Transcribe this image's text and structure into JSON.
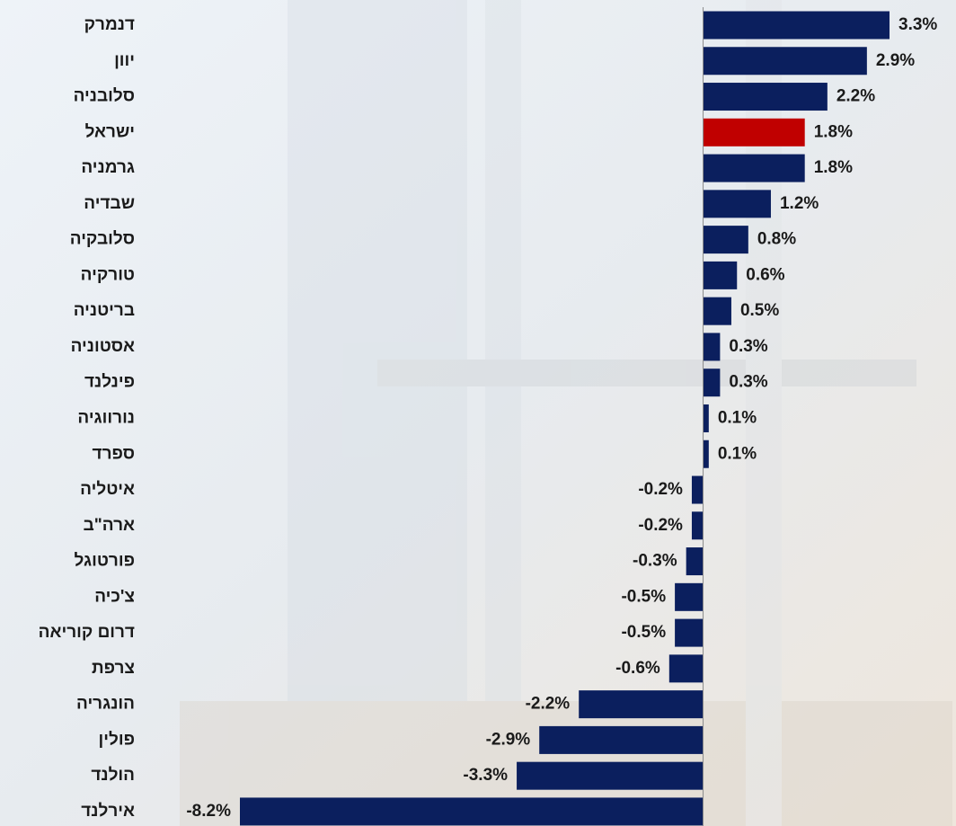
{
  "chart_data": {
    "type": "bar",
    "orientation": "horizontal",
    "categories": [
      "דנמרק",
      "יוון",
      "סלובניה",
      "ישראל",
      "גרמניה",
      "שבדיה",
      "סלובקיה",
      "טורקיה",
      "בריטניה",
      "אסטוניה",
      "פינלנד",
      "נורווגיה",
      "ספרד",
      "איטליה",
      "ארה\"ב",
      "פורטוגל",
      "צ'כיה",
      "דרום קוריאה",
      "צרפת",
      "הונגריה",
      "פולין",
      "הולנד",
      "אירלנד"
    ],
    "values": [
      3.3,
      2.9,
      2.2,
      1.8,
      1.8,
      1.2,
      0.8,
      0.6,
      0.5,
      0.3,
      0.3,
      0.1,
      0.1,
      -0.2,
      -0.2,
      -0.3,
      -0.5,
      -0.5,
      -0.6,
      -2.2,
      -2.9,
      -3.3,
      -8.2
    ],
    "value_labels": [
      "3.3%",
      "2.9%",
      "2.2%",
      "1.8%",
      "1.8%",
      "1.2%",
      "0.8%",
      "0.6%",
      "0.5%",
      "0.3%",
      "0.3%",
      "0.1%",
      "0.1%",
      "-0.2%",
      "-0.2%",
      "-0.3%",
      "-0.5%",
      "-0.5%",
      "-0.6%",
      "-2.2%",
      "-2.9%",
      "-3.3%",
      "-8.2%"
    ],
    "colors": [
      "#0b1f5e",
      "#0b1f5e",
      "#0b1f5e",
      "#c00000",
      "#0b1f5e",
      "#0b1f5e",
      "#0b1f5e",
      "#0b1f5e",
      "#0b1f5e",
      "#0b1f5e",
      "#0b1f5e",
      "#0b1f5e",
      "#0b1f5e",
      "#0b1f5e",
      "#0b1f5e",
      "#0b1f5e",
      "#0b1f5e",
      "#0b1f5e",
      "#0b1f5e",
      "#0b1f5e",
      "#0b1f5e",
      "#0b1f5e",
      "#0b1f5e"
    ],
    "xlim": [
      -8.2,
      3.3
    ]
  }
}
